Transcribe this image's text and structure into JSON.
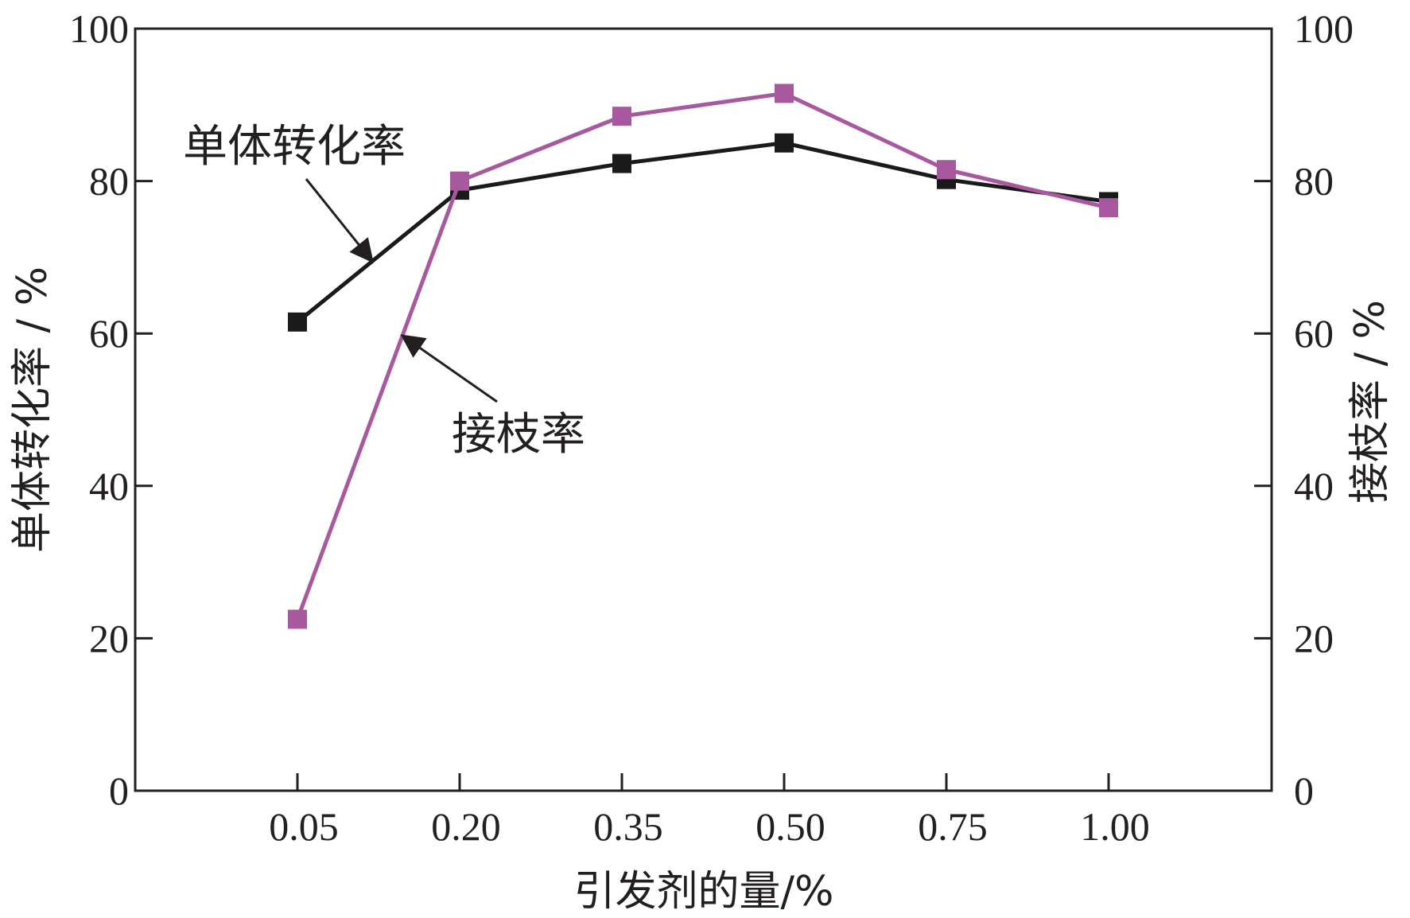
{
  "chart_data": {
    "type": "line",
    "categories": [
      "0.05",
      "0.20",
      "0.35",
      "0.50",
      "0.75",
      "1.00"
    ],
    "xlabel": "引发剂的量/%",
    "ylabel_left": "单体转化率 / %",
    "ylabel_right": "接枝率 / %",
    "ylim_left": [
      0,
      100
    ],
    "ylim_right": [
      0,
      100
    ],
    "yticks_left": [
      "0",
      "20",
      "40",
      "60",
      "80",
      "100"
    ],
    "yticks_right": [
      "0",
      "20",
      "40",
      "60",
      "80",
      "100"
    ],
    "grid": false,
    "legend": "none",
    "series": [
      {
        "key": "conversion",
        "axis": "left",
        "color": "#1a1a1a",
        "marker": "square",
        "values": [
          61.5,
          78.8,
          82.3,
          85.0,
          80.2,
          77.3
        ]
      },
      {
        "key": "grafting",
        "axis": "right",
        "color": "#a8589f",
        "marker": "square",
        "values": [
          22.5,
          80.0,
          88.5,
          91.5,
          81.5,
          76.5
        ]
      }
    ],
    "annotations": [
      {
        "text": "单体转化率",
        "series": "conversion"
      },
      {
        "text": "接枝率",
        "series": "grafting"
      }
    ]
  }
}
